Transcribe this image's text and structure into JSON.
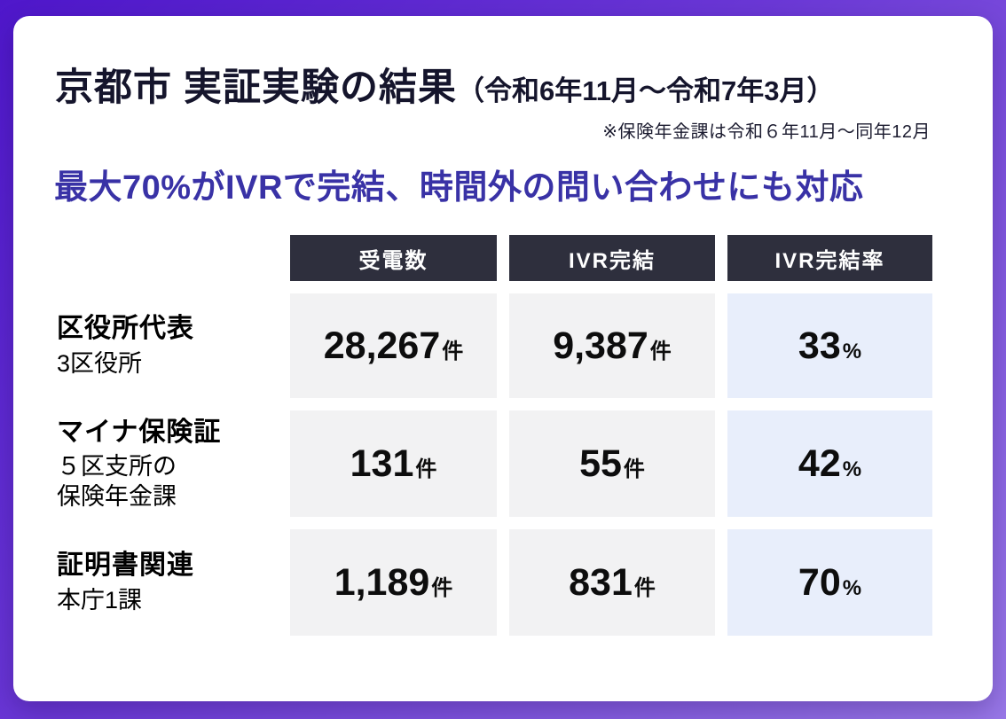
{
  "slide": {
    "title": "京都市 実証実験の結果",
    "title_period": "（令和6年11月〜令和7年3月）",
    "note": "※保険年金課は令和６年11月〜同年12月",
    "headline": "最大70%がIVRで完結、時間外の問い合わせにも対応"
  },
  "table": {
    "columns": [
      "受電数",
      "IVR完結",
      "IVR完結率"
    ],
    "rows": [
      {
        "label": "区役所代表",
        "sublabel": "3区役所",
        "calls": "28,267",
        "calls_unit": "件",
        "ivr_done": "9,387",
        "ivr_done_unit": "件",
        "rate": "33",
        "rate_unit": "%"
      },
      {
        "label": "マイナ保険証",
        "sublabel": "５区支所の\n保険年金課",
        "calls": "131",
        "calls_unit": "件",
        "ivr_done": "55",
        "ivr_done_unit": "件",
        "rate": "42",
        "rate_unit": "%"
      },
      {
        "label": "証明書関連",
        "sublabel": "本庁1課",
        "calls": "1,189",
        "calls_unit": "件",
        "ivr_done": "831",
        "ivr_done_unit": "件",
        "rate": "70",
        "rate_unit": "%"
      }
    ]
  },
  "colors": {
    "background_gradient_start": "#4f17cb",
    "background_gradient_end": "#9877e7",
    "card_background": "#ffffff",
    "header_background": "#2e2f3d",
    "header_text": "#ffffff",
    "cell_gray": "#f2f2f3",
    "cell_blue": "#e8eefb",
    "title_text": "#15152c",
    "headline_text": "#3932a6",
    "value_text": "#0d0d0d"
  },
  "chart_data": {
    "type": "table",
    "title": "京都市 実証実験の結果（令和6年11月〜令和7年3月）",
    "note": "※保険年金課は令和６年11月〜同年12月",
    "headline": "最大70%がIVRで完結、時間外の問い合わせにも対応",
    "columns": [
      "受電数",
      "IVR完結",
      "IVR完結率"
    ],
    "rows": [
      {
        "category": "区役所代表（3区役所）",
        "calls_received": 28267,
        "ivr_completed": 9387,
        "ivr_completion_rate_percent": 33
      },
      {
        "category": "マイナ保険証（５区支所の保険年金課）",
        "calls_received": 131,
        "ivr_completed": 55,
        "ivr_completion_rate_percent": 42
      },
      {
        "category": "証明書関連（本庁1課）",
        "calls_received": 1189,
        "ivr_completed": 831,
        "ivr_completion_rate_percent": 70
      }
    ]
  }
}
